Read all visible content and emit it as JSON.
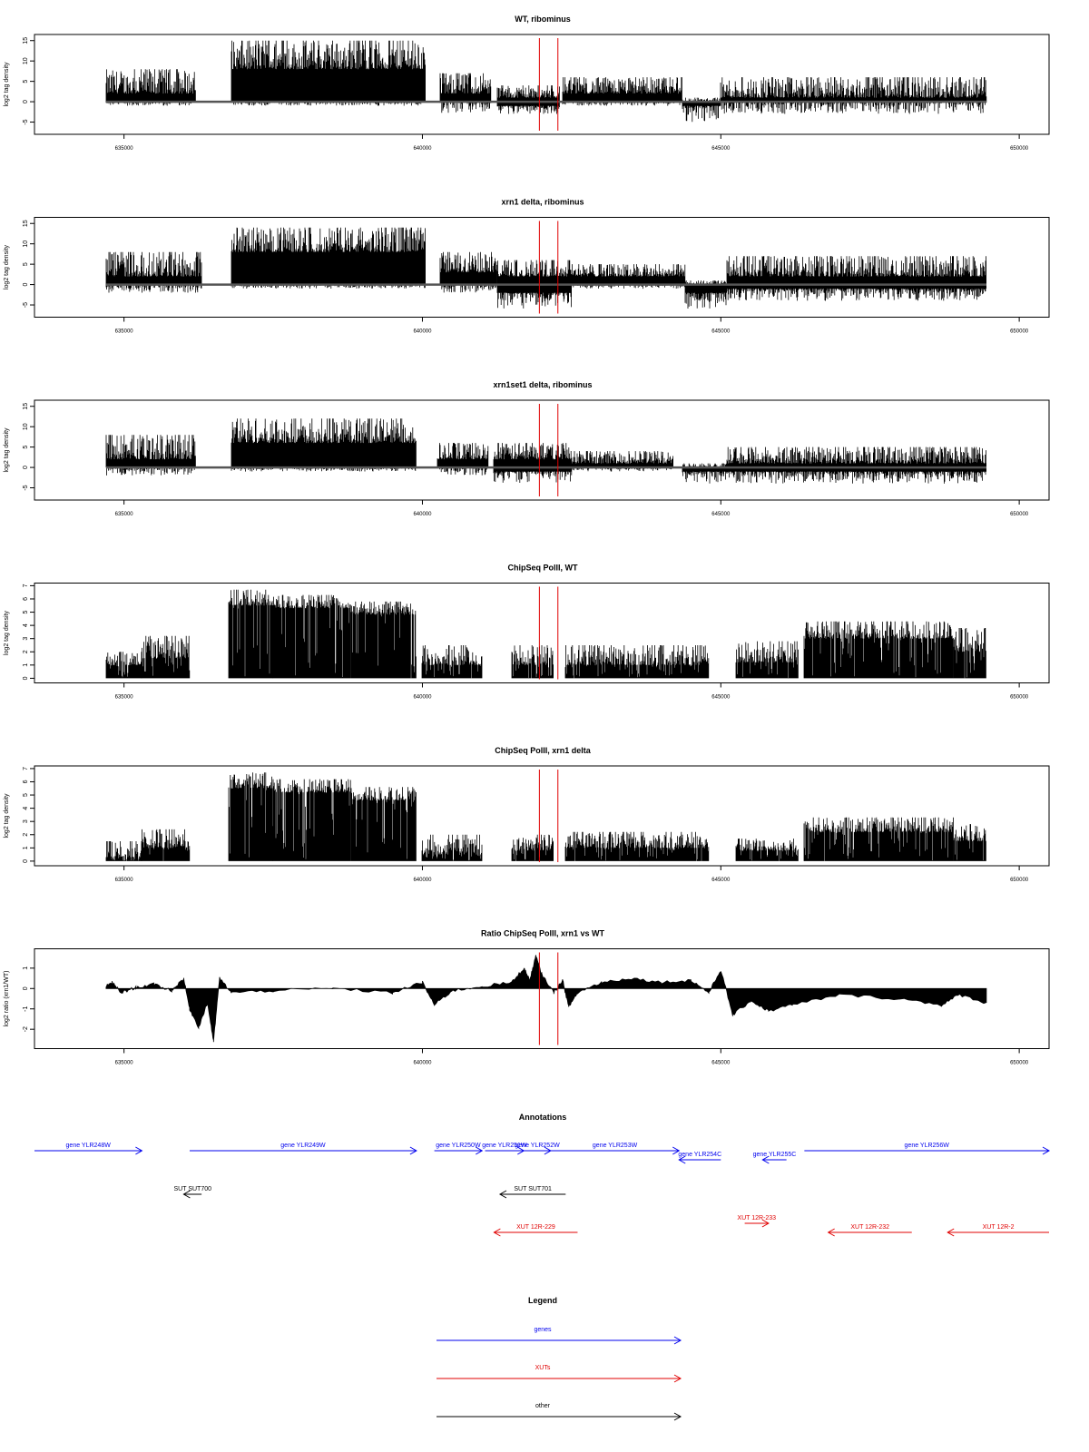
{
  "chart_data": {
    "type": "genome-browser-tracks",
    "x_ticks": [
      635000,
      640000,
      645000,
      650000
    ],
    "tick_labels": [
      "635000",
      "640000",
      "645000",
      "650000"
    ],
    "xlim": [
      633500,
      650500
    ],
    "region_markers": [
      641960,
      642270
    ],
    "colors": {
      "signal": "#000000",
      "marker": "#e00000",
      "genes": "#0000ee",
      "XUTs": "#e00000",
      "other": "#000000"
    },
    "panels": [
      {
        "title": "WT, ribominus",
        "ylabel": "log2 tag density",
        "yticks": [
          -5,
          0,
          5,
          10,
          15
        ],
        "ylim": [
          -8,
          16.5
        ],
        "style": "bars",
        "segments": [
          {
            "x": [
              634700,
              636200
            ],
            "upper": [
              2,
              8
            ],
            "lower": [
              -1,
              0
            ]
          },
          {
            "x": [
              636800,
              640050
            ],
            "upper": [
              8,
              15
            ],
            "lower": [
              -1,
              0
            ]
          },
          {
            "x": [
              640300,
              641150
            ],
            "upper": [
              2,
              7
            ],
            "lower": [
              -3,
              0
            ]
          },
          {
            "x": [
              641250,
              642300
            ],
            "upper": [
              1,
              4
            ],
            "lower": [
              -3,
              -1
            ]
          },
          {
            "x": [
              642350,
              644350
            ],
            "upper": [
              2,
              6
            ],
            "lower": [
              -1,
              0
            ]
          },
          {
            "x": [
              644350,
              645000
            ],
            "upper": [
              0,
              1
            ],
            "lower": [
              -5,
              -1
            ]
          },
          {
            "x": [
              645000,
              649450
            ],
            "upper": [
              1,
              6
            ],
            "lower": [
              -3,
              0
            ]
          }
        ]
      },
      {
        "title": "xrn1 delta, ribominus",
        "ylabel": "log2 tag density",
        "yticks": [
          -5,
          0,
          5,
          10,
          15
        ],
        "ylim": [
          -8,
          16.5
        ],
        "style": "bars",
        "segments": [
          {
            "x": [
              634700,
              636300
            ],
            "upper": [
              2,
              8
            ],
            "lower": [
              -2,
              0
            ]
          },
          {
            "x": [
              636800,
              640050
            ],
            "upper": [
              8,
              14
            ],
            "lower": [
              -1,
              0
            ]
          },
          {
            "x": [
              640300,
              641250
            ],
            "upper": [
              3,
              8
            ],
            "lower": [
              -2,
              0
            ]
          },
          {
            "x": [
              641250,
              642500
            ],
            "upper": [
              2,
              6
            ],
            "lower": [
              -6,
              -2
            ]
          },
          {
            "x": [
              642500,
              644400
            ],
            "upper": [
              2,
              5
            ],
            "lower": [
              -1,
              0
            ]
          },
          {
            "x": [
              644400,
              645100
            ],
            "upper": [
              0,
              1
            ],
            "lower": [
              -6,
              -2
            ]
          },
          {
            "x": [
              645100,
              649450
            ],
            "upper": [
              2,
              7
            ],
            "lower": [
              -4,
              -1
            ]
          }
        ]
      },
      {
        "title": "xrn1set1 delta, ribominus",
        "ylabel": "log2 tag density",
        "yticks": [
          -5,
          0,
          5,
          10,
          15
        ],
        "ylim": [
          -8,
          16.5
        ],
        "style": "bars",
        "segments": [
          {
            "x": [
              634700,
              636200
            ],
            "upper": [
              2,
              8
            ],
            "lower": [
              -2,
              0
            ]
          },
          {
            "x": [
              636800,
              639900
            ],
            "upper": [
              6,
              12
            ],
            "lower": [
              -1,
              0
            ]
          },
          {
            "x": [
              640250,
              641100
            ],
            "upper": [
              2,
              6
            ],
            "lower": [
              -2,
              0
            ]
          },
          {
            "x": [
              641200,
              642500
            ],
            "upper": [
              2,
              6
            ],
            "lower": [
              -4,
              -1
            ]
          },
          {
            "x": [
              642500,
              644200
            ],
            "upper": [
              1,
              4
            ],
            "lower": [
              -1,
              0
            ]
          },
          {
            "x": [
              644350,
              645100
            ],
            "upper": [
              0,
              1
            ],
            "lower": [
              -4,
              -1
            ]
          },
          {
            "x": [
              645100,
              649450
            ],
            "upper": [
              1,
              5
            ],
            "lower": [
              -4,
              -1
            ]
          }
        ]
      },
      {
        "title": "ChipSeq PolII, WT",
        "ylabel": "log2 tag density",
        "yticks": [
          0,
          1,
          2,
          3,
          4,
          5,
          6,
          7
        ],
        "ylim": [
          -0.35,
          7.2
        ],
        "style": "positive",
        "segments": [
          {
            "x": [
              634700,
              635300
            ],
            "upper": [
              1,
              2
            ],
            "lower": [
              0,
              0
            ]
          },
          {
            "x": [
              635300,
              636100
            ],
            "upper": [
              1.5,
              3.2
            ],
            "lower": [
              0,
              0
            ]
          },
          {
            "x": [
              636750,
              637500
            ],
            "upper": [
              5.5,
              6.7
            ],
            "lower": [
              0,
              0
            ]
          },
          {
            "x": [
              637500,
              638800
            ],
            "upper": [
              5.3,
              6.3
            ],
            "lower": [
              0,
              0
            ]
          },
          {
            "x": [
              638800,
              639900
            ],
            "upper": [
              4.8,
              5.8
            ],
            "lower": [
              0,
              0
            ]
          },
          {
            "x": [
              640000,
              641000
            ],
            "upper": [
              1,
              2.5
            ],
            "lower": [
              0,
              0
            ]
          },
          {
            "x": [
              641500,
              642200
            ],
            "upper": [
              1,
              2.5
            ],
            "lower": [
              0,
              0
            ]
          },
          {
            "x": [
              642400,
              644800
            ],
            "upper": [
              1,
              2.5
            ],
            "lower": [
              0,
              0
            ]
          },
          {
            "x": [
              645250,
              646300
            ],
            "upper": [
              1.2,
              2.8
            ],
            "lower": [
              0,
              0
            ]
          },
          {
            "x": [
              646400,
              648900
            ],
            "upper": [
              3,
              4.3
            ],
            "lower": [
              0,
              0
            ]
          },
          {
            "x": [
              648900,
              649450
            ],
            "upper": [
              2,
              3.8
            ],
            "lower": [
              0,
              0
            ]
          }
        ]
      },
      {
        "title": "ChipSeq PolII, xrn1 delta",
        "ylabel": "log2 tag density",
        "yticks": [
          0,
          1,
          2,
          3,
          4,
          5,
          6,
          7
        ],
        "ylim": [
          -0.35,
          7.2
        ],
        "style": "positive",
        "segments": [
          {
            "x": [
              634700,
              635300
            ],
            "upper": [
              0.3,
              1.5
            ],
            "lower": [
              0,
              0
            ]
          },
          {
            "x": [
              635300,
              636100
            ],
            "upper": [
              1,
              2.4
            ],
            "lower": [
              0,
              0
            ]
          },
          {
            "x": [
              636750,
              637500
            ],
            "upper": [
              5.5,
              6.7
            ],
            "lower": [
              0,
              0
            ]
          },
          {
            "x": [
              637500,
              638800
            ],
            "upper": [
              5.2,
              6.2
            ],
            "lower": [
              0,
              0
            ]
          },
          {
            "x": [
              638800,
              639900
            ],
            "upper": [
              4.6,
              5.6
            ],
            "lower": [
              0,
              0
            ]
          },
          {
            "x": [
              640000,
              641000
            ],
            "upper": [
              0.5,
              2
            ],
            "lower": [
              0,
              0
            ]
          },
          {
            "x": [
              641500,
              642200
            ],
            "upper": [
              0.8,
              2
            ],
            "lower": [
              0,
              0
            ]
          },
          {
            "x": [
              642400,
              644800
            ],
            "upper": [
              1,
              2.2
            ],
            "lower": [
              0,
              0
            ]
          },
          {
            "x": [
              645250,
              646300
            ],
            "upper": [
              0.8,
              1.7
            ],
            "lower": [
              0,
              0
            ]
          },
          {
            "x": [
              646400,
              648900
            ],
            "upper": [
              2.2,
              3.3
            ],
            "lower": [
              0,
              0
            ]
          },
          {
            "x": [
              648900,
              649450
            ],
            "upper": [
              1.5,
              2.8
            ],
            "lower": [
              0,
              0
            ]
          }
        ]
      },
      {
        "title": "Ratio ChipSeq PolII, xrn1 vs WT",
        "ylabel": "log2 ratio (xrn1/WT)",
        "yticks": [
          -2,
          -1,
          0,
          1
        ],
        "ylim": [
          -2.95,
          1.95
        ],
        "style": "ratio",
        "curve": [
          [
            634700,
            0.1
          ],
          [
            634800,
            0.3
          ],
          [
            634950,
            -0.2
          ],
          [
            635200,
            0.05
          ],
          [
            635500,
            0.2
          ],
          [
            635800,
            -0.1
          ],
          [
            636000,
            0.5
          ],
          [
            636100,
            -1.0
          ],
          [
            636250,
            -1.9
          ],
          [
            636400,
            -0.7
          ],
          [
            636500,
            -2.6
          ],
          [
            636600,
            0.5
          ],
          [
            636800,
            -0.2
          ],
          [
            637500,
            -0.1
          ],
          [
            638500,
            0.0
          ],
          [
            639500,
            -0.2
          ],
          [
            640000,
            0.3
          ],
          [
            640200,
            -0.8
          ],
          [
            640500,
            -0.1
          ],
          [
            641000,
            0.1
          ],
          [
            641500,
            0.3
          ],
          [
            641700,
            1.0
          ],
          [
            641800,
            0.4
          ],
          [
            641900,
            1.6
          ],
          [
            642000,
            0.7
          ],
          [
            642200,
            -0.2
          ],
          [
            642350,
            0.4
          ],
          [
            642450,
            -0.9
          ],
          [
            642600,
            -0.2
          ],
          [
            643000,
            0.3
          ],
          [
            643500,
            0.5
          ],
          [
            644000,
            0.3
          ],
          [
            644500,
            0.4
          ],
          [
            644800,
            -0.2
          ],
          [
            645000,
            0.9
          ],
          [
            645200,
            -1.3
          ],
          [
            645500,
            -0.6
          ],
          [
            645800,
            -1.1
          ],
          [
            646200,
            -0.8
          ],
          [
            647000,
            -0.3
          ],
          [
            648000,
            -0.5
          ],
          [
            648700,
            -0.8
          ],
          [
            649000,
            -0.3
          ],
          [
            649450,
            -0.7
          ]
        ]
      }
    ],
    "annotations": {
      "title": "Annotations",
      "features": [
        {
          "label": "gene YLR248W",
          "start": 633500,
          "end": 635300,
          "strand": "+",
          "row": 0,
          "class": "genes"
        },
        {
          "label": "gene YLR249W",
          "start": 636100,
          "end": 639900,
          "strand": "+",
          "row": 0,
          "class": "genes"
        },
        {
          "label": "gene YLR250W",
          "start": 640200,
          "end": 641000,
          "strand": "+",
          "row": 0,
          "class": "genes"
        },
        {
          "label": "gene YLR251W",
          "start": 641050,
          "end": 641700,
          "strand": "+",
          "row": 0,
          "class": "genes"
        },
        {
          "label": "gene YLR252W",
          "start": 641700,
          "end": 642150,
          "strand": "+",
          "row": 0,
          "class": "genes"
        },
        {
          "label": "gene YLR253W",
          "start": 642150,
          "end": 644300,
          "strand": "+",
          "row": 0,
          "class": "genes"
        },
        {
          "label": "gene YLR254C",
          "start": 644300,
          "end": 645000,
          "strand": "-",
          "row": 1,
          "class": "genes"
        },
        {
          "label": "gene YLR255C",
          "start": 645700,
          "end": 646100,
          "strand": "-",
          "row": 1,
          "class": "genes"
        },
        {
          "label": "gene YLR256W",
          "start": 646400,
          "end": 650500,
          "strand": "+",
          "row": 0,
          "class": "genes"
        },
        {
          "label": "SUT SUT700",
          "start": 636000,
          "end": 636300,
          "strand": "-",
          "row": 2,
          "class": "other"
        },
        {
          "label": "SUT SUT701",
          "start": 641300,
          "end": 642400,
          "strand": "-",
          "row": 2,
          "class": "other"
        },
        {
          "label": "XUT 12R-229",
          "start": 641200,
          "end": 642600,
          "strand": "-",
          "row": 4,
          "class": "XUTs"
        },
        {
          "label": "XUT 12R-233",
          "start": 645400,
          "end": 645800,
          "strand": "+",
          "row": 3,
          "class": "XUTs"
        },
        {
          "label": "XUT 12R-232",
          "start": 646800,
          "end": 648200,
          "strand": "-",
          "row": 4,
          "class": "XUTs"
        },
        {
          "label": "XUT 12R-2",
          "start": 648800,
          "end": 650500,
          "strand": "-",
          "row": 4,
          "class": "XUTs"
        }
      ]
    },
    "legend": {
      "title": "Legend",
      "entries": [
        {
          "label": "genes",
          "class": "genes"
        },
        {
          "label": "XUTs",
          "class": "XUTs"
        },
        {
          "label": "other",
          "class": "other"
        }
      ]
    }
  }
}
